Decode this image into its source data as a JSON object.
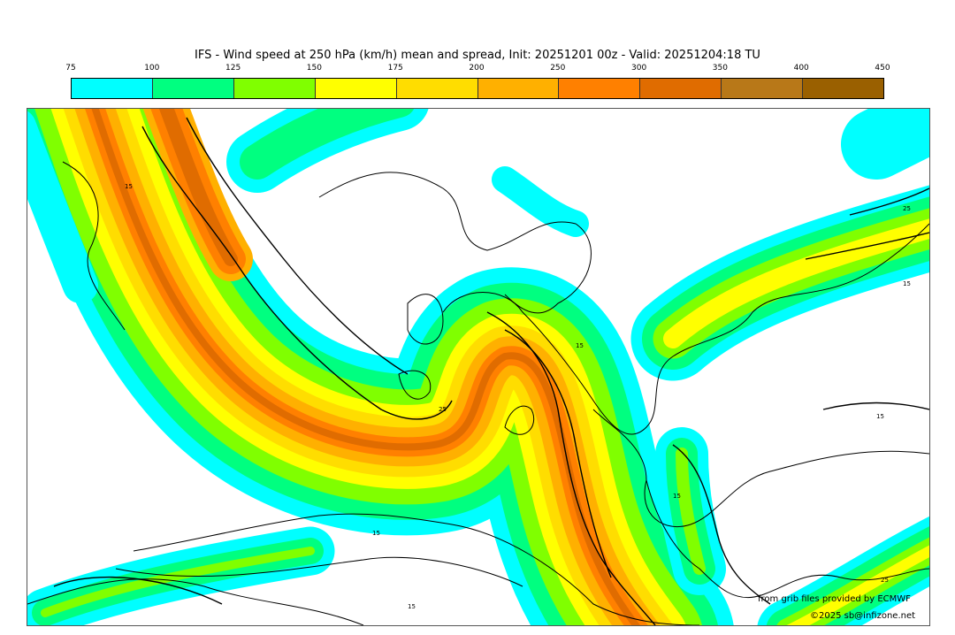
{
  "title": "IFS - Wind speed at 250 hPa (km/h) mean and spread, Init: 20251201 00z - Valid: 20251204:18 TU",
  "legend": {
    "ticks": [
      "75",
      "100",
      "125",
      "150",
      "175",
      "200",
      "250",
      "300",
      "350",
      "400",
      "450"
    ],
    "colors": [
      "#00ffff",
      "#00ff80",
      "#80ff00",
      "#ffff00",
      "#ffdd00",
      "#ffb000",
      "#ff8000",
      "#e06c00",
      "#b87818",
      "#9a6000"
    ]
  },
  "contour_labels": [
    "15",
    "25",
    "15",
    "15",
    "15",
    "25",
    "15",
    "15",
    "25",
    "15"
  ],
  "credits": {
    "source": "from grib files provided by ECMWF",
    "copyright": "©2025 sb@infizone.net"
  }
}
